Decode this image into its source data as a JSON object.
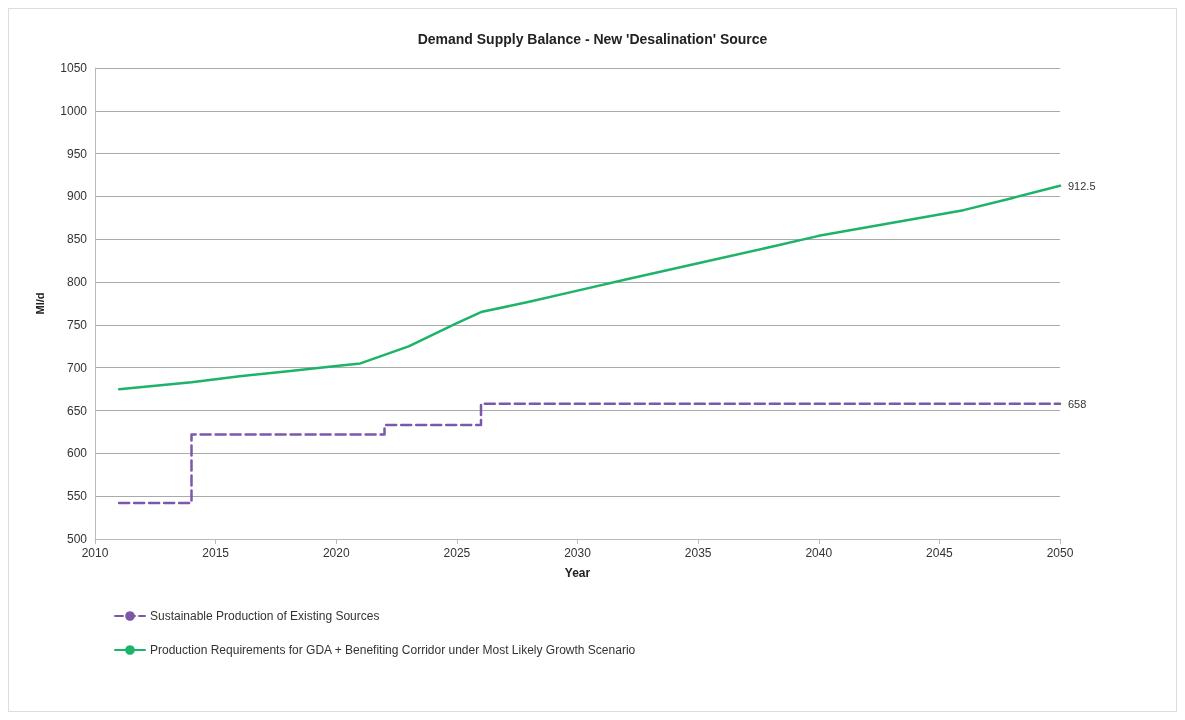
{
  "chart_data": {
    "type": "line",
    "title": "Demand Supply Balance - New 'Desalination' Source",
    "xlabel": "Year",
    "ylabel": "Ml/d",
    "xlim": [
      2010,
      2050
    ],
    "xticks": [
      2010,
      2015,
      2020,
      2025,
      2030,
      2035,
      2040,
      2045,
      2050
    ],
    "ylim": [
      500,
      1050
    ],
    "yticks": [
      500,
      550,
      600,
      650,
      700,
      750,
      800,
      850,
      900,
      950,
      1000,
      1050
    ],
    "grid": "y",
    "legend": "bottom",
    "marker": "none",
    "series": [
      {
        "name": "Sustainable Production of Existing Sources",
        "type": "step",
        "color": "#7b58a8",
        "line_style": "dashed",
        "x": [
          2011,
          2014,
          2022,
          2026,
          2050
        ],
        "values": [
          542,
          622,
          633,
          658,
          658
        ],
        "value_labels": [
          null,
          null,
          null,
          null,
          "658"
        ]
      },
      {
        "name": "Production Requirements for GDA + Benefiting Corridor under Most Likely Growth Scenario",
        "type": "line",
        "color": "#1db36a",
        "line_style": "solid",
        "x": [
          2011,
          2014,
          2016,
          2018,
          2020,
          2021,
          2023,
          2025,
          2026,
          2028,
          2030,
          2032,
          2035,
          2038,
          2040,
          2043,
          2046,
          2048,
          2050
        ],
        "values": [
          675,
          683,
          690,
          696,
          702,
          705,
          725,
          752,
          765,
          777,
          790,
          803,
          822,
          841,
          854,
          869,
          884,
          898,
          912.5
        ],
        "value_labels": [
          null,
          null,
          null,
          null,
          null,
          null,
          null,
          null,
          null,
          null,
          null,
          null,
          null,
          null,
          null,
          null,
          null,
          null,
          "912.5"
        ]
      }
    ]
  }
}
